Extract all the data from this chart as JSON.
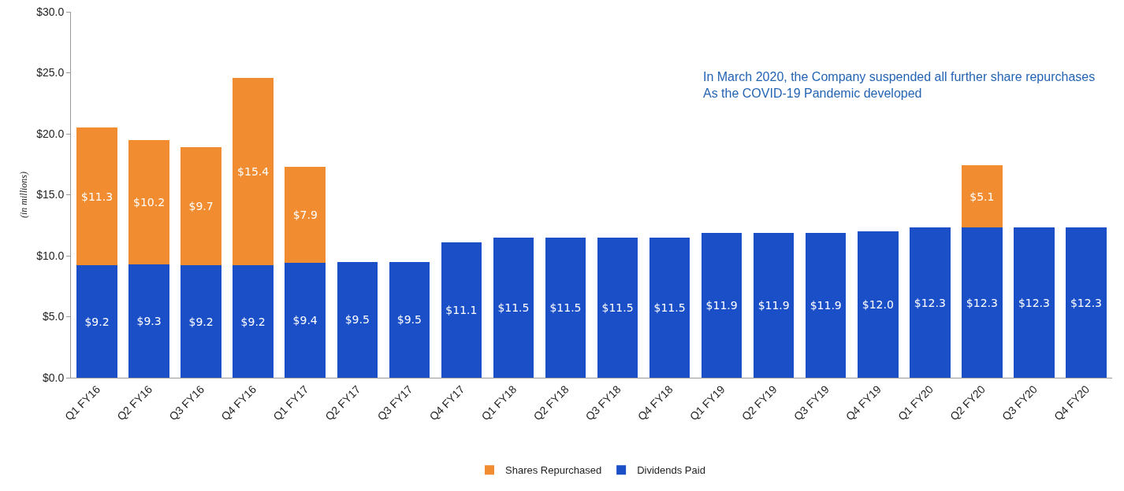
{
  "chart_data": {
    "type": "bar",
    "stacked": true,
    "ylabel": "(in millions)",
    "categories": [
      "Q1 FY16",
      "Q2 FY16",
      "Q3 FY16",
      "Q4 FY16",
      "Q1 FY17",
      "Q2 FY17",
      "Q3 FY17",
      "Q4 FY17",
      "Q1 FY18",
      "Q2 FY18",
      "Q3 FY18",
      "Q4 FY18",
      "Q1 FY19",
      "Q2 FY19",
      "Q3 FY19",
      "Q4 FY19",
      "Q1 FY20",
      "Q2 FY20",
      "Q3 FY20",
      "Q4 FY20"
    ],
    "series": [
      {
        "name": "Dividends Paid",
        "color": "#1a4fc8",
        "values": [
          9.2,
          9.3,
          9.2,
          9.2,
          9.4,
          9.5,
          9.5,
          11.1,
          11.5,
          11.5,
          11.5,
          11.5,
          11.9,
          11.9,
          11.9,
          12.0,
          12.3,
          12.3,
          12.3,
          12.3
        ],
        "value_labels": [
          "$9.2",
          "$9.3",
          "$9.2",
          "$9.2",
          "$9.4",
          "$9.5",
          "$9.5",
          "$11.1",
          "$11.5",
          "$11.5",
          "$11.5",
          "$11.5",
          "$11.9",
          "$11.9",
          "$11.9",
          "$12.0",
          "$12.3",
          "$12.3",
          "$12.3",
          "$12.3"
        ]
      },
      {
        "name": "Shares Repurchased",
        "color": "#f28c30",
        "values": [
          11.3,
          10.2,
          9.7,
          15.4,
          7.9,
          null,
          null,
          null,
          null,
          null,
          null,
          null,
          null,
          null,
          null,
          null,
          null,
          5.1,
          null,
          null
        ],
        "value_labels": [
          "$11.3",
          "$10.2",
          "$9.7",
          "$15.4",
          "$7.9",
          null,
          null,
          null,
          null,
          null,
          null,
          null,
          null,
          null,
          null,
          null,
          null,
          "$5.1",
          null,
          null
        ]
      }
    ],
    "ylim": [
      0,
      30
    ],
    "yticks": [
      {
        "value": 0,
        "label": "$0.0"
      },
      {
        "value": 5,
        "label": "$5.0"
      },
      {
        "value": 10,
        "label": "$10.0"
      },
      {
        "value": 15,
        "label": "$15.0"
      },
      {
        "value": 20,
        "label": "$20.0"
      },
      {
        "value": 25,
        "label": "$25.0"
      },
      {
        "value": 30,
        "label": "$30.0"
      }
    ],
    "annotations": [
      "In March 2020, the Company suspended all further share repurchases\nAs the COVID-19 Pandemic developed"
    ],
    "grid": false,
    "legend": "bottom"
  }
}
